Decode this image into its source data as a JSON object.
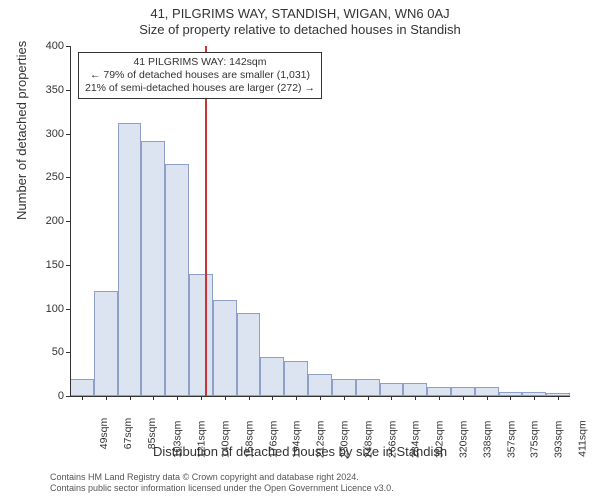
{
  "header": {
    "title": "41, PILGRIMS WAY, STANDISH, WIGAN, WN6 0AJ",
    "subtitle": "Size of property relative to detached houses in Standish"
  },
  "chart": {
    "type": "histogram",
    "ylim": [
      0,
      400
    ],
    "ytick_step": 50,
    "ylabel": "Number of detached properties",
    "xlabel": "Distribution of detached houses by size in Standish",
    "bar_fill": "#dce4f2",
    "bar_border": "#8ea0c8",
    "axis_color": "#333333",
    "ref_line_color": "#cc3333",
    "ref_line_width": 2,
    "ref_value_sqm": 142,
    "bin_start": 40,
    "bin_width": 18,
    "categories": [
      "49sqm",
      "67sqm",
      "85sqm",
      "103sqm",
      "121sqm",
      "140sqm",
      "158sqm",
      "176sqm",
      "194sqm",
      "212sqm",
      "230sqm",
      "248sqm",
      "266sqm",
      "284sqm",
      "302sqm",
      "320sqm",
      "338sqm",
      "357sqm",
      "375sqm",
      "393sqm",
      "411sqm"
    ],
    "values": [
      20,
      120,
      312,
      292,
      265,
      140,
      110,
      95,
      45,
      40,
      25,
      20,
      20,
      15,
      15,
      10,
      10,
      10,
      5,
      5,
      3
    ],
    "label_fontsize": 13,
    "tick_fontsize": 11
  },
  "annotation": {
    "line1": "41 PILGRIMS WAY: 142sqm",
    "line2": "← 79% of detached houses are smaller (1,031)",
    "line3": "21% of semi-detached houses are larger (272) →"
  },
  "footer": {
    "line1": "Contains HM Land Registry data © Crown copyright and database right 2024.",
    "line2": "Contains public sector information licensed under the Open Government Licence v3.0."
  }
}
